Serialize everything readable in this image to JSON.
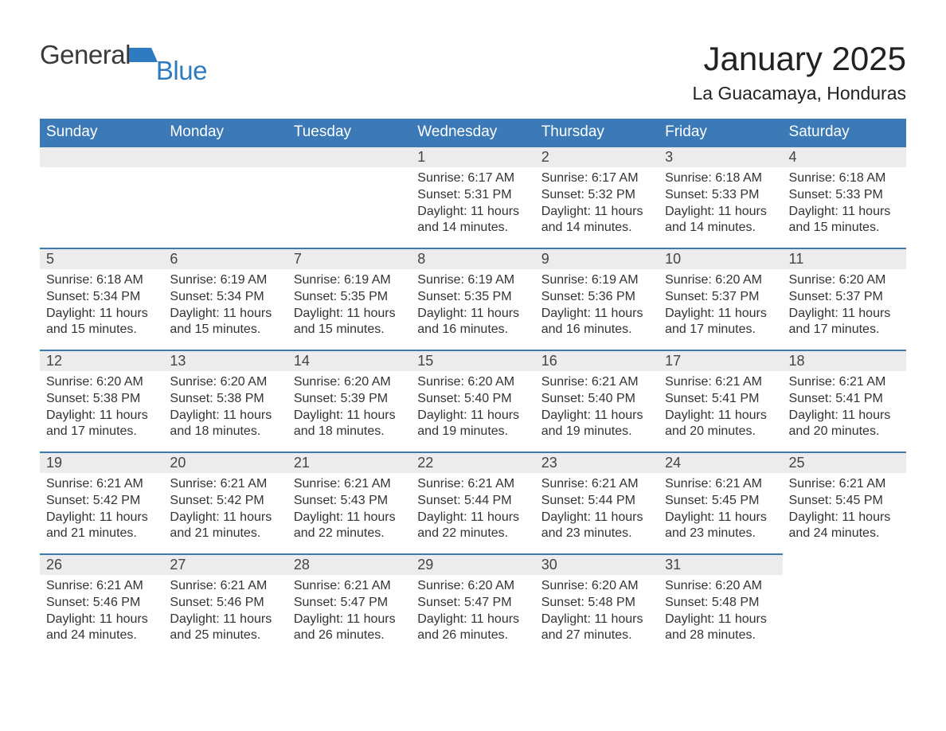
{
  "logo": {
    "text1": "General",
    "text2": "Blue",
    "flag_color": "#2f7bbf"
  },
  "title": "January 2025",
  "subtitle": "La Guacamaya, Honduras",
  "colors": {
    "header_bg": "#3b79b7",
    "header_text": "#ffffff",
    "daynum_bg": "#ececec",
    "daynum_border": "#3b79b7",
    "body_text": "#333333",
    "page_bg": "#ffffff"
  },
  "table": {
    "type": "calendar-table",
    "columns": [
      "Sunday",
      "Monday",
      "Tuesday",
      "Wednesday",
      "Thursday",
      "Friday",
      "Saturday"
    ],
    "column_fontsize": 19,
    "daynum_fontsize": 18,
    "body_fontsize": 16,
    "rows": [
      [
        null,
        null,
        null,
        {
          "num": "1",
          "sunrise": "6:17 AM",
          "sunset": "5:31 PM",
          "daylight": "11 hours and 14 minutes."
        },
        {
          "num": "2",
          "sunrise": "6:17 AM",
          "sunset": "5:32 PM",
          "daylight": "11 hours and 14 minutes."
        },
        {
          "num": "3",
          "sunrise": "6:18 AM",
          "sunset": "5:33 PM",
          "daylight": "11 hours and 14 minutes."
        },
        {
          "num": "4",
          "sunrise": "6:18 AM",
          "sunset": "5:33 PM",
          "daylight": "11 hours and 15 minutes."
        }
      ],
      [
        {
          "num": "5",
          "sunrise": "6:18 AM",
          "sunset": "5:34 PM",
          "daylight": "11 hours and 15 minutes."
        },
        {
          "num": "6",
          "sunrise": "6:19 AM",
          "sunset": "5:34 PM",
          "daylight": "11 hours and 15 minutes."
        },
        {
          "num": "7",
          "sunrise": "6:19 AM",
          "sunset": "5:35 PM",
          "daylight": "11 hours and 15 minutes."
        },
        {
          "num": "8",
          "sunrise": "6:19 AM",
          "sunset": "5:35 PM",
          "daylight": "11 hours and 16 minutes."
        },
        {
          "num": "9",
          "sunrise": "6:19 AM",
          "sunset": "5:36 PM",
          "daylight": "11 hours and 16 minutes."
        },
        {
          "num": "10",
          "sunrise": "6:20 AM",
          "sunset": "5:37 PM",
          "daylight": "11 hours and 17 minutes."
        },
        {
          "num": "11",
          "sunrise": "6:20 AM",
          "sunset": "5:37 PM",
          "daylight": "11 hours and 17 minutes."
        }
      ],
      [
        {
          "num": "12",
          "sunrise": "6:20 AM",
          "sunset": "5:38 PM",
          "daylight": "11 hours and 17 minutes."
        },
        {
          "num": "13",
          "sunrise": "6:20 AM",
          "sunset": "5:38 PM",
          "daylight": "11 hours and 18 minutes."
        },
        {
          "num": "14",
          "sunrise": "6:20 AM",
          "sunset": "5:39 PM",
          "daylight": "11 hours and 18 minutes."
        },
        {
          "num": "15",
          "sunrise": "6:20 AM",
          "sunset": "5:40 PM",
          "daylight": "11 hours and 19 minutes."
        },
        {
          "num": "16",
          "sunrise": "6:21 AM",
          "sunset": "5:40 PM",
          "daylight": "11 hours and 19 minutes."
        },
        {
          "num": "17",
          "sunrise": "6:21 AM",
          "sunset": "5:41 PM",
          "daylight": "11 hours and 20 minutes."
        },
        {
          "num": "18",
          "sunrise": "6:21 AM",
          "sunset": "5:41 PM",
          "daylight": "11 hours and 20 minutes."
        }
      ],
      [
        {
          "num": "19",
          "sunrise": "6:21 AM",
          "sunset": "5:42 PM",
          "daylight": "11 hours and 21 minutes."
        },
        {
          "num": "20",
          "sunrise": "6:21 AM",
          "sunset": "5:42 PM",
          "daylight": "11 hours and 21 minutes."
        },
        {
          "num": "21",
          "sunrise": "6:21 AM",
          "sunset": "5:43 PM",
          "daylight": "11 hours and 22 minutes."
        },
        {
          "num": "22",
          "sunrise": "6:21 AM",
          "sunset": "5:44 PM",
          "daylight": "11 hours and 22 minutes."
        },
        {
          "num": "23",
          "sunrise": "6:21 AM",
          "sunset": "5:44 PM",
          "daylight": "11 hours and 23 minutes."
        },
        {
          "num": "24",
          "sunrise": "6:21 AM",
          "sunset": "5:45 PM",
          "daylight": "11 hours and 23 minutes."
        },
        {
          "num": "25",
          "sunrise": "6:21 AM",
          "sunset": "5:45 PM",
          "daylight": "11 hours and 24 minutes."
        }
      ],
      [
        {
          "num": "26",
          "sunrise": "6:21 AM",
          "sunset": "5:46 PM",
          "daylight": "11 hours and 24 minutes."
        },
        {
          "num": "27",
          "sunrise": "6:21 AM",
          "sunset": "5:46 PM",
          "daylight": "11 hours and 25 minutes."
        },
        {
          "num": "28",
          "sunrise": "6:21 AM",
          "sunset": "5:47 PM",
          "daylight": "11 hours and 26 minutes."
        },
        {
          "num": "29",
          "sunrise": "6:20 AM",
          "sunset": "5:47 PM",
          "daylight": "11 hours and 26 minutes."
        },
        {
          "num": "30",
          "sunrise": "6:20 AM",
          "sunset": "5:48 PM",
          "daylight": "11 hours and 27 minutes."
        },
        {
          "num": "31",
          "sunrise": "6:20 AM",
          "sunset": "5:48 PM",
          "daylight": "11 hours and 28 minutes."
        },
        null
      ]
    ]
  },
  "labels": {
    "sunrise_prefix": "Sunrise: ",
    "sunset_prefix": "Sunset: ",
    "daylight_prefix": "Daylight: "
  }
}
